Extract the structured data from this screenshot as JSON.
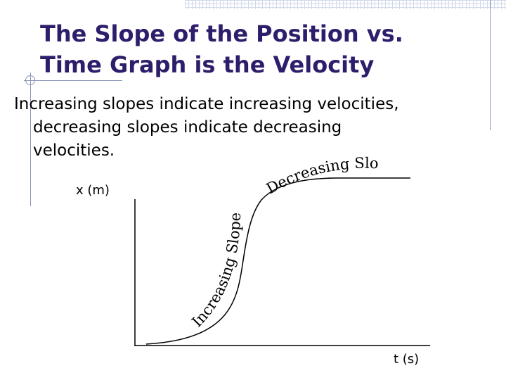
{
  "title": {
    "line1": "The Slope of the Position vs.",
    "line2": "Time Graph is the Velocity"
  },
  "body": {
    "line1": "Increasing slopes indicate increasing velocities,",
    "line2": "decreasing slopes indicate decreasing",
    "line3": "velocities."
  },
  "graph": {
    "y_axis_label": "x (m)",
    "x_axis_label": "t (s)",
    "increasing_label": "Increasing Slope",
    "decreasing_label": "Decreasing Slope"
  },
  "colors": {
    "title": "#2e1d6b",
    "text": "#000000",
    "decoration": "#8a96b8"
  }
}
